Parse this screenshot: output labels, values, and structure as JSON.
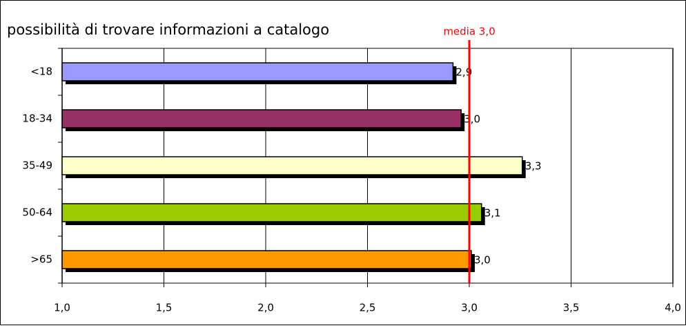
{
  "chart_data": {
    "type": "bar",
    "orientation": "horizontal",
    "title": "possibilità di trovare informazioni a catalogo",
    "categories": [
      "<18",
      "18-34",
      "35-49",
      "50-64",
      ">65"
    ],
    "values": [
      2.92,
      2.96,
      3.26,
      3.06,
      3.01
    ],
    "value_labels": [
      "2,9",
      "3,0",
      "3,3",
      "3,1",
      "3,0"
    ],
    "colors": [
      "#9999ff",
      "#993366",
      "#ffffcc",
      "#99cc00",
      "#ff9900"
    ],
    "xlim": [
      1,
      4
    ],
    "xticks": [
      {
        "value": 1,
        "label": "1,0"
      },
      {
        "value": 1.5,
        "label": "1,5"
      },
      {
        "value": 2,
        "label": "2,0"
      },
      {
        "value": 2.5,
        "label": "2,5"
      },
      {
        "value": 3,
        "label": "3,0"
      },
      {
        "value": 3.5,
        "label": "3,5"
      },
      {
        "value": 4,
        "label": "4,0"
      }
    ],
    "grid": true,
    "reference_line": {
      "value": 3,
      "label": "media 3,0",
      "color": "#ff0000"
    }
  }
}
